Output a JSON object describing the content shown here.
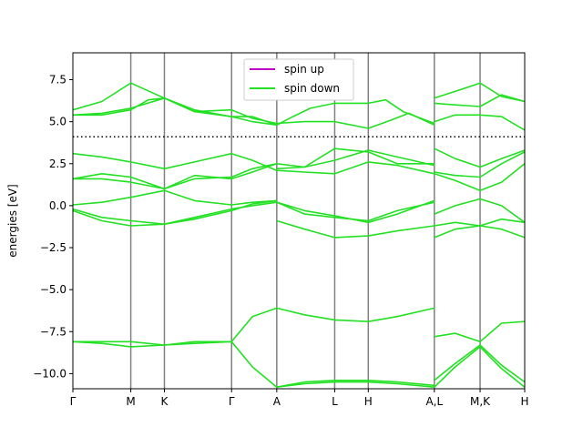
{
  "chart_data": {
    "type": "line",
    "title": "",
    "xlabel": "",
    "ylabel": "energies [eV]",
    "ylim": [
      -10.9,
      9.1
    ],
    "y_ticks": [
      -10.0,
      -7.5,
      -5.0,
      -2.5,
      0.0,
      2.5,
      5.0,
      7.5
    ],
    "y_tick_labels": [
      "−10.0",
      "−7.5",
      "−5.0",
      "−2.5",
      "0.0",
      "2.5",
      "5.0",
      "7.5"
    ],
    "kpath_positions": [
      0,
      1.0,
      1.58,
      2.74,
      3.52,
      4.52,
      5.1,
      6.24,
      7.03,
      7.8
    ],
    "kpath_labels": [
      "Γ",
      "M",
      "K",
      "Γ",
      "A",
      "L",
      "H",
      "A,L",
      "M,K",
      "H"
    ],
    "fermi_level": 4.1,
    "legend": {
      "position": "top-center",
      "entries": [
        "spin up",
        "spin down"
      ]
    },
    "colors": {
      "spin_up": "#c000c0",
      "spin_down": "#22e022",
      "kline": "#808080",
      "fermi": "#000000"
    },
    "series": [
      {
        "name": "spin down",
        "x": [
          0,
          0.5,
          1.0,
          1.58,
          2.1,
          2.74,
          3.1,
          3.52
        ],
        "y": [
          5.7,
          6.2,
          7.3,
          6.4,
          5.6,
          5.7,
          5.2,
          4.9
        ]
      },
      {
        "name": "spin down",
        "x": [
          0,
          0.5,
          1.0,
          1.58,
          2.1,
          2.74,
          3.1,
          3.52
        ],
        "y": [
          5.4,
          5.5,
          5.8,
          6.4,
          5.6,
          5.3,
          5.3,
          4.8
        ]
      },
      {
        "name": "spin down",
        "x": [
          0,
          0.5,
          1.0,
          1.3,
          1.58,
          2.1,
          2.74,
          3.1,
          3.52
        ],
        "y": [
          5.4,
          5.4,
          5.7,
          6.3,
          6.4,
          5.7,
          5.3,
          5.0,
          4.8
        ]
      },
      {
        "name": "spin down",
        "x": [
          3.52,
          3.8,
          4.1,
          4.52,
          5.1,
          5.4,
          5.7,
          6.24
        ],
        "y": [
          4.8,
          5.3,
          5.8,
          6.1,
          6.1,
          6.3,
          5.6,
          4.9
        ]
      },
      {
        "name": "spin down",
        "x": [
          3.52,
          4.0,
          4.52,
          5.1,
          5.5,
          5.8,
          6.24
        ],
        "y": [
          4.9,
          5.0,
          5.0,
          4.6,
          5.1,
          5.5,
          4.8
        ]
      },
      {
        "name": "spin down",
        "x": [
          6.24,
          6.6,
          7.03,
          7.4,
          7.8
        ],
        "y": [
          6.4,
          6.8,
          7.3,
          6.5,
          6.2
        ]
      },
      {
        "name": "spin down",
        "x": [
          6.24,
          6.6,
          7.03,
          7.4,
          7.8
        ],
        "y": [
          6.1,
          6.0,
          5.9,
          6.6,
          6.2
        ]
      },
      {
        "name": "spin down",
        "x": [
          6.24,
          6.6,
          7.03,
          7.4,
          7.8
        ],
        "y": [
          5.0,
          5.4,
          5.4,
          5.3,
          4.5
        ]
      },
      {
        "name": "spin down",
        "x": [
          0,
          0.5,
          1.0,
          1.58,
          2.1,
          2.74,
          3.1,
          3.52
        ],
        "y": [
          3.1,
          2.9,
          2.6,
          2.2,
          2.6,
          3.1,
          2.7,
          2.1
        ]
      },
      {
        "name": "spin down",
        "x": [
          0,
          0.5,
          1.0,
          1.58,
          2.1,
          2.74,
          3.1,
          3.52
        ],
        "y": [
          1.6,
          1.9,
          1.7,
          1.0,
          1.8,
          1.6,
          2.0,
          2.5
        ]
      },
      {
        "name": "spin down",
        "x": [
          0,
          0.5,
          1.0,
          1.58,
          2.1,
          2.74,
          3.1,
          3.52
        ],
        "y": [
          1.6,
          1.6,
          1.4,
          1.0,
          1.6,
          1.7,
          2.2,
          2.5
        ]
      },
      {
        "name": "spin down",
        "x": [
          0,
          0.5,
          1.0,
          1.58,
          2.1,
          2.74,
          3.1,
          3.52
        ],
        "y": [
          0.05,
          0.2,
          0.5,
          0.9,
          0.3,
          0.05,
          0.2,
          0.3
        ]
      },
      {
        "name": "spin down",
        "x": [
          3.52,
          4.0,
          4.52,
          5.1,
          5.6,
          6.24
        ],
        "y": [
          2.5,
          2.3,
          3.4,
          3.2,
          2.5,
          2.5
        ]
      },
      {
        "name": "spin down",
        "x": [
          3.52,
          4.0,
          4.52,
          5.1,
          5.6,
          6.24
        ],
        "y": [
          2.1,
          2.0,
          1.9,
          2.6,
          2.4,
          1.9
        ]
      },
      {
        "name": "spin down",
        "x": [
          3.52,
          4.0,
          4.52,
          5.1,
          5.6,
          6.24
        ],
        "y": [
          2.2,
          2.3,
          2.7,
          3.3,
          2.9,
          2.4
        ]
      },
      {
        "name": "spin down",
        "x": [
          6.24,
          6.6,
          7.03,
          7.4,
          7.8
        ],
        "y": [
          3.4,
          2.8,
          2.3,
          2.8,
          3.3
        ]
      },
      {
        "name": "spin down",
        "x": [
          6.24,
          6.6,
          7.03,
          7.4,
          7.8
        ],
        "y": [
          2.0,
          1.8,
          1.7,
          2.5,
          3.2
        ]
      },
      {
        "name": "spin down",
        "x": [
          6.24,
          6.6,
          7.03,
          7.4,
          7.8
        ],
        "y": [
          1.9,
          1.5,
          0.9,
          1.4,
          2.5
        ]
      },
      {
        "name": "spin down",
        "x": [
          6.24,
          6.6,
          7.03,
          7.4,
          7.8
        ],
        "y": [
          -0.5,
          0.0,
          0.4,
          0.0,
          -1.0
        ]
      },
      {
        "name": "spin down",
        "x": [
          0,
          0.5,
          1.0,
          1.58,
          2.1,
          2.74,
          3.1,
          3.52
        ],
        "y": [
          -0.2,
          -0.7,
          -0.9,
          -1.1,
          -0.8,
          -0.3,
          0.1,
          0.3
        ]
      },
      {
        "name": "spin down",
        "x": [
          0,
          0.5,
          1.0,
          1.58,
          2.1,
          2.74,
          3.1,
          3.52
        ],
        "y": [
          -0.3,
          -0.9,
          -1.2,
          -1.1,
          -0.7,
          -0.2,
          0.0,
          0.2
        ]
      },
      {
        "name": "spin down",
        "x": [
          3.52,
          4.0,
          4.52,
          5.1,
          5.6,
          6.24
        ],
        "y": [
          0.2,
          -0.3,
          -0.6,
          -1.0,
          -0.5,
          0.3
        ]
      },
      {
        "name": "spin down",
        "x": [
          3.52,
          4.0,
          4.52,
          5.1,
          5.6,
          6.24
        ],
        "y": [
          0.2,
          -0.5,
          -0.7,
          -0.9,
          -0.3,
          0.2
        ]
      },
      {
        "name": "spin down",
        "x": [
          3.52,
          4.0,
          4.52,
          5.1,
          5.6,
          6.24
        ],
        "y": [
          -0.9,
          -1.4,
          -1.9,
          -1.8,
          -1.5,
          -1.2
        ]
      },
      {
        "name": "spin down",
        "x": [
          6.24,
          6.6,
          7.03,
          7.4,
          7.8
        ],
        "y": [
          -1.9,
          -1.4,
          -1.2,
          -1.4,
          -1.9
        ]
      },
      {
        "name": "spin down",
        "x": [
          6.24,
          6.6,
          7.03,
          7.4,
          7.8
        ],
        "y": [
          -1.2,
          -1.0,
          -1.2,
          -0.8,
          -1.0
        ]
      },
      {
        "name": "spin down",
        "x": [
          0,
          0.5,
          1.0,
          1.58,
          2.1,
          2.74
        ],
        "y": [
          -8.1,
          -8.1,
          -8.1,
          -8.3,
          -8.2,
          -8.1
        ]
      },
      {
        "name": "spin down",
        "x": [
          0,
          0.5,
          1.0,
          1.58,
          2.1,
          2.74
        ],
        "y": [
          -8.1,
          -8.2,
          -8.4,
          -8.3,
          -8.1,
          -8.1
        ]
      },
      {
        "name": "spin down",
        "x": [
          2.74,
          3.1,
          3.52,
          4.0,
          4.52,
          5.1,
          5.6,
          6.24
        ],
        "y": [
          -8.1,
          -6.6,
          -6.1,
          -6.5,
          -6.8,
          -6.9,
          -6.6,
          -6.1
        ]
      },
      {
        "name": "spin down",
        "x": [
          2.74,
          3.1,
          3.52,
          4.0,
          4.52,
          5.1,
          5.6,
          6.24
        ],
        "y": [
          -8.1,
          -9.6,
          -10.8,
          -10.6,
          -10.5,
          -10.5,
          -10.6,
          -10.8
        ]
      },
      {
        "name": "spin down",
        "x": [
          3.52,
          4.0,
          4.52,
          5.1,
          5.6,
          6.24
        ],
        "y": [
          -10.8,
          -10.5,
          -10.4,
          -10.4,
          -10.5,
          -10.7
        ]
      },
      {
        "name": "spin down",
        "x": [
          6.24,
          6.6,
          7.03,
          7.4,
          7.8
        ],
        "y": [
          -7.8,
          -7.6,
          -8.1,
          -7.0,
          -6.9
        ]
      },
      {
        "name": "spin down",
        "x": [
          6.24,
          6.6,
          7.03,
          7.4,
          7.8
        ],
        "y": [
          -10.4,
          -9.4,
          -8.3,
          -9.5,
          -10.5
        ]
      },
      {
        "name": "spin down",
        "x": [
          6.24,
          6.6,
          7.03,
          7.4,
          7.8
        ],
        "y": [
          -10.8,
          -9.6,
          -8.4,
          -9.7,
          -10.8
        ]
      }
    ]
  }
}
